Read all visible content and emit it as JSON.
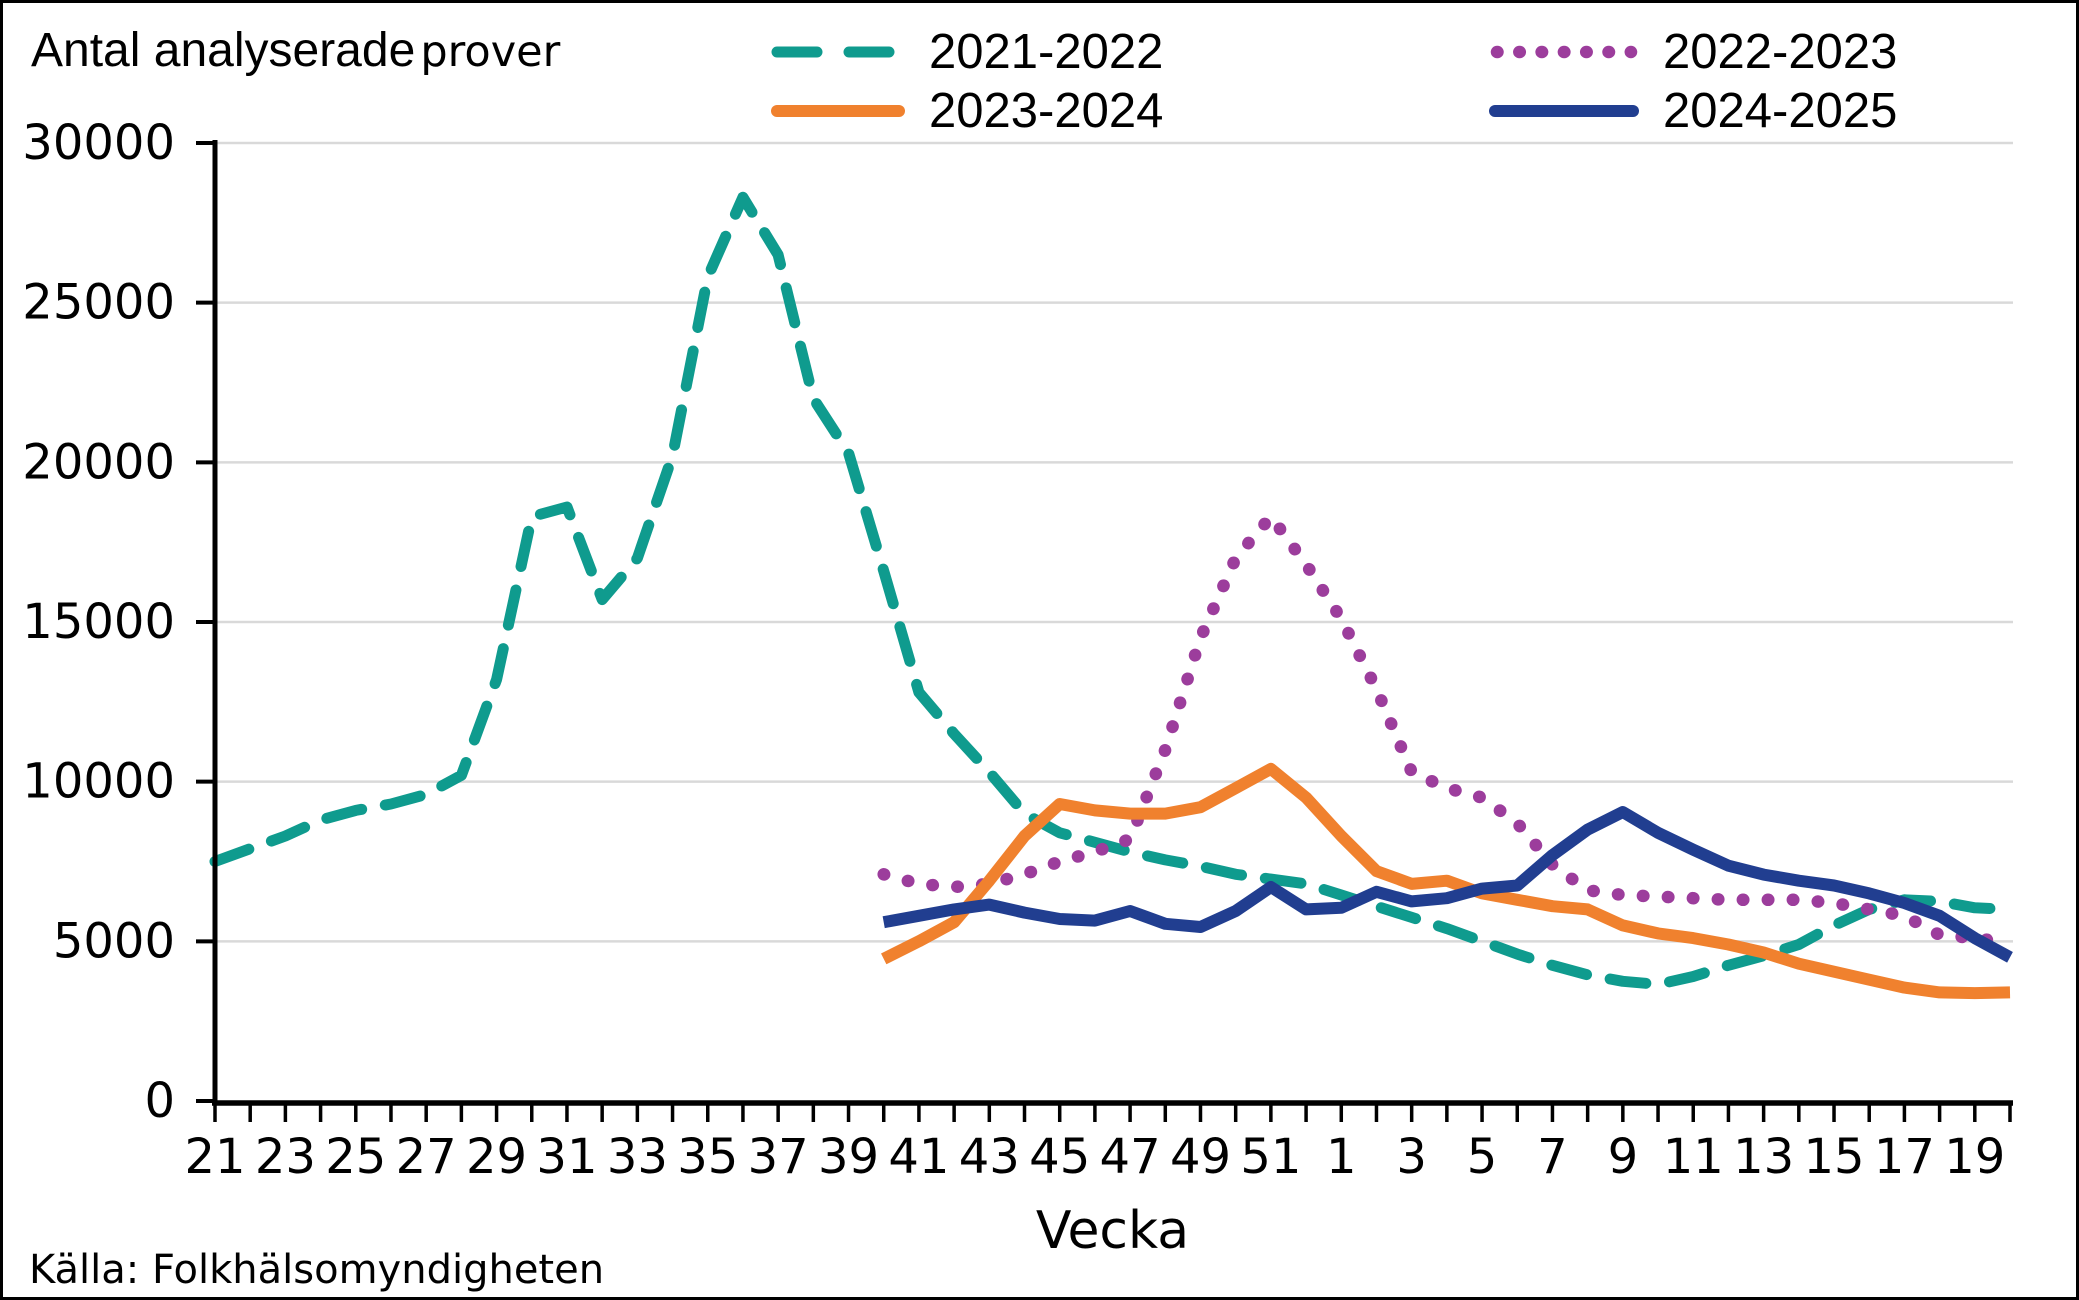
{
  "frame": {
    "background": "#ffffff",
    "border_color": "#000000"
  },
  "title": {
    "main": "Antal analyserade",
    "suffix": "prover"
  },
  "legend": {
    "items": [
      {
        "label": "2021-2022",
        "color": "#0f9b8e",
        "style": "dashed"
      },
      {
        "label": "2022-2023",
        "color": "#9c3d9c",
        "style": "dotted"
      },
      {
        "label": "2023-2024",
        "color": "#f0812e",
        "style": "solid"
      },
      {
        "label": "2024-2025",
        "color": "#213e90",
        "style": "solid"
      }
    ]
  },
  "axis": {
    "xlabel": "Vecka",
    "source": "Källa: Folkhälsomyndigheten"
  },
  "chart_data": {
    "type": "line",
    "title": "Antal analyserade prover",
    "xlabel": "Vecka",
    "ylabel": "",
    "source": "Källa: Folkhälsomyndigheten",
    "grid": "horizontal",
    "legend_position": "top",
    "ylim": [
      0,
      30000
    ],
    "y_ticks": [
      0,
      5000,
      10000,
      15000,
      20000,
      25000,
      30000
    ],
    "x_weeks": [
      21,
      22,
      23,
      24,
      25,
      26,
      27,
      28,
      29,
      30,
      31,
      32,
      33,
      34,
      35,
      36,
      37,
      38,
      39,
      40,
      41,
      42,
      43,
      44,
      45,
      46,
      47,
      48,
      49,
      50,
      51,
      52,
      1,
      2,
      3,
      4,
      5,
      6,
      7,
      8,
      9,
      10,
      11,
      12,
      13,
      14,
      15,
      16,
      17,
      18,
      19,
      20
    ],
    "x_tick_label_every": 2,
    "series": [
      {
        "name": "2021-2022",
        "color": "#0f9b8e",
        "style": "dashed",
        "start_week": 21,
        "values": [
          7500,
          7900,
          8300,
          8800,
          9100,
          9300,
          9600,
          10200,
          13200,
          18300,
          18600,
          15700,
          17000,
          20200,
          25800,
          28300,
          26500,
          22000,
          20300,
          16600,
          12800,
          11500,
          10300,
          9000,
          8400,
          8100,
          7800,
          7550,
          7350,
          7100,
          6950,
          6800,
          6450,
          6100,
          5750,
          5400,
          5000,
          4600,
          4250,
          3950,
          3750,
          3650,
          3900,
          4250,
          4550,
          4900,
          5500,
          6000,
          6300,
          6250,
          6050,
          6000
        ]
      },
      {
        "name": "2022-2023",
        "color": "#9c3d9c",
        "style": "dotted",
        "start_week": 40,
        "values": [
          7100,
          6800,
          6700,
          6800,
          7100,
          7500,
          7800,
          8200,
          11000,
          14500,
          17000,
          18300,
          16800,
          15100,
          12900,
          10300,
          9800,
          9500,
          8700,
          7400,
          6600,
          6450,
          6400,
          6350,
          6300,
          6300,
          6300,
          6200,
          6000,
          5800,
          5200,
          5100,
          4950
        ]
      },
      {
        "name": "2023-2024",
        "color": "#f0812e",
        "style": "solid",
        "start_week": 40,
        "values": [
          4450,
          5000,
          5600,
          6900,
          8300,
          9300,
          9100,
          9000,
          9000,
          9200,
          9800,
          10400,
          9500,
          8300,
          7200,
          6800,
          6900,
          6500,
          6300,
          6100,
          6000,
          5500,
          5250,
          5100,
          4900,
          4650,
          4300,
          4050,
          3800,
          3550,
          3400,
          3380,
          3400
        ]
      },
      {
        "name": "2024-2025",
        "color": "#213e90",
        "style": "solid",
        "start_week": 40,
        "values": [
          5600,
          5800,
          6000,
          6150,
          5900,
          5700,
          5650,
          5950,
          5550,
          5450,
          5950,
          6700,
          6000,
          6050,
          6550,
          6250,
          6350,
          6650,
          6750,
          7700,
          8500,
          9050,
          8400,
          7870,
          7370,
          7090,
          6900,
          6750,
          6500,
          6200,
          5800,
          5100,
          4500
        ]
      }
    ]
  }
}
